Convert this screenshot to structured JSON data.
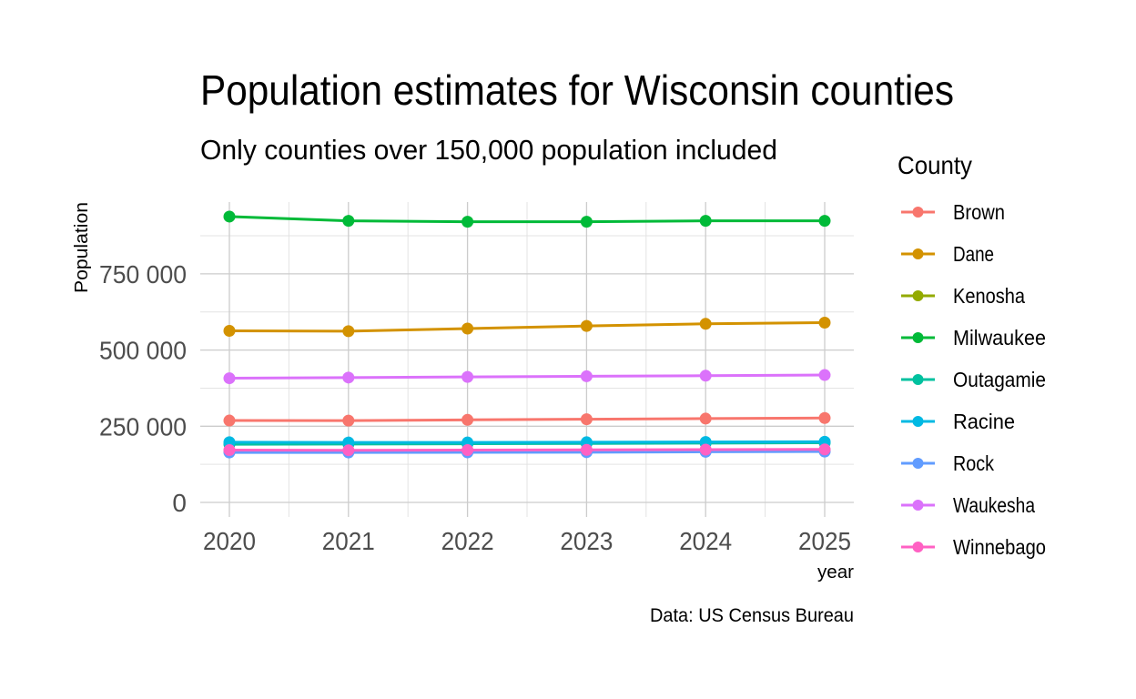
{
  "chart_data": {
    "type": "line",
    "title": "Population estimates for Wisconsin counties",
    "subtitle": "Only counties over 150,000 population included",
    "caption": "Data: US Census Bureau",
    "xlabel": "year",
    "ylabel": "Population",
    "x": [
      2020,
      2021,
      2022,
      2023,
      2024,
      2025
    ],
    "x_tick_labels": [
      "2020",
      "2021",
      "2022",
      "2023",
      "2024",
      "2025"
    ],
    "y_ticks": [
      0,
      250000,
      500000,
      750000
    ],
    "y_tick_labels": [
      "0",
      "250 000",
      "500 000",
      "750 000"
    ],
    "y_minor_ticks": [
      125000,
      375000,
      625000,
      875000
    ],
    "ylim": [
      -28000,
      990000
    ],
    "xlim": [
      2019.75,
      2025.25
    ],
    "grid": true,
    "legend_title": "County",
    "legend_position": "right",
    "series": [
      {
        "name": "Brown",
        "color": "#F8766D",
        "values": [
          268700,
          268400,
          270900,
          273000,
          275000,
          277000
        ]
      },
      {
        "name": "Dane",
        "color": "#D39200",
        "values": [
          563000,
          561900,
          570500,
          579000,
          586000,
          590000
        ]
      },
      {
        "name": "Kenosha",
        "color": "#93AA00",
        "values": [
          169300,
          169200,
          169600,
          170000,
          170900,
          171500
        ]
      },
      {
        "name": "Milwaukee",
        "color": "#00BA38",
        "values": [
          938000,
          924000,
          921000,
          921000,
          924000,
          924000
        ]
      },
      {
        "name": "Outagamie",
        "color": "#00C19F",
        "values": [
          190800,
          191500,
          192500,
          193500,
          194700,
          195600
        ]
      },
      {
        "name": "Racine",
        "color": "#00B9E3",
        "values": [
          197500,
          196700,
          196600,
          197400,
          198300,
          199000
        ]
      },
      {
        "name": "Rock",
        "color": "#619CFF",
        "values": [
          164000,
          164000,
          164200,
          164800,
          166000,
          166900
        ]
      },
      {
        "name": "Waukesha",
        "color": "#DB72FB",
        "values": [
          407500,
          409700,
          411800,
          413900,
          415800,
          418000
        ]
      },
      {
        "name": "Winnebago",
        "color": "#FF61C3",
        "values": [
          171700,
          171100,
          171700,
          172500,
          173300,
          174000
        ]
      }
    ]
  }
}
